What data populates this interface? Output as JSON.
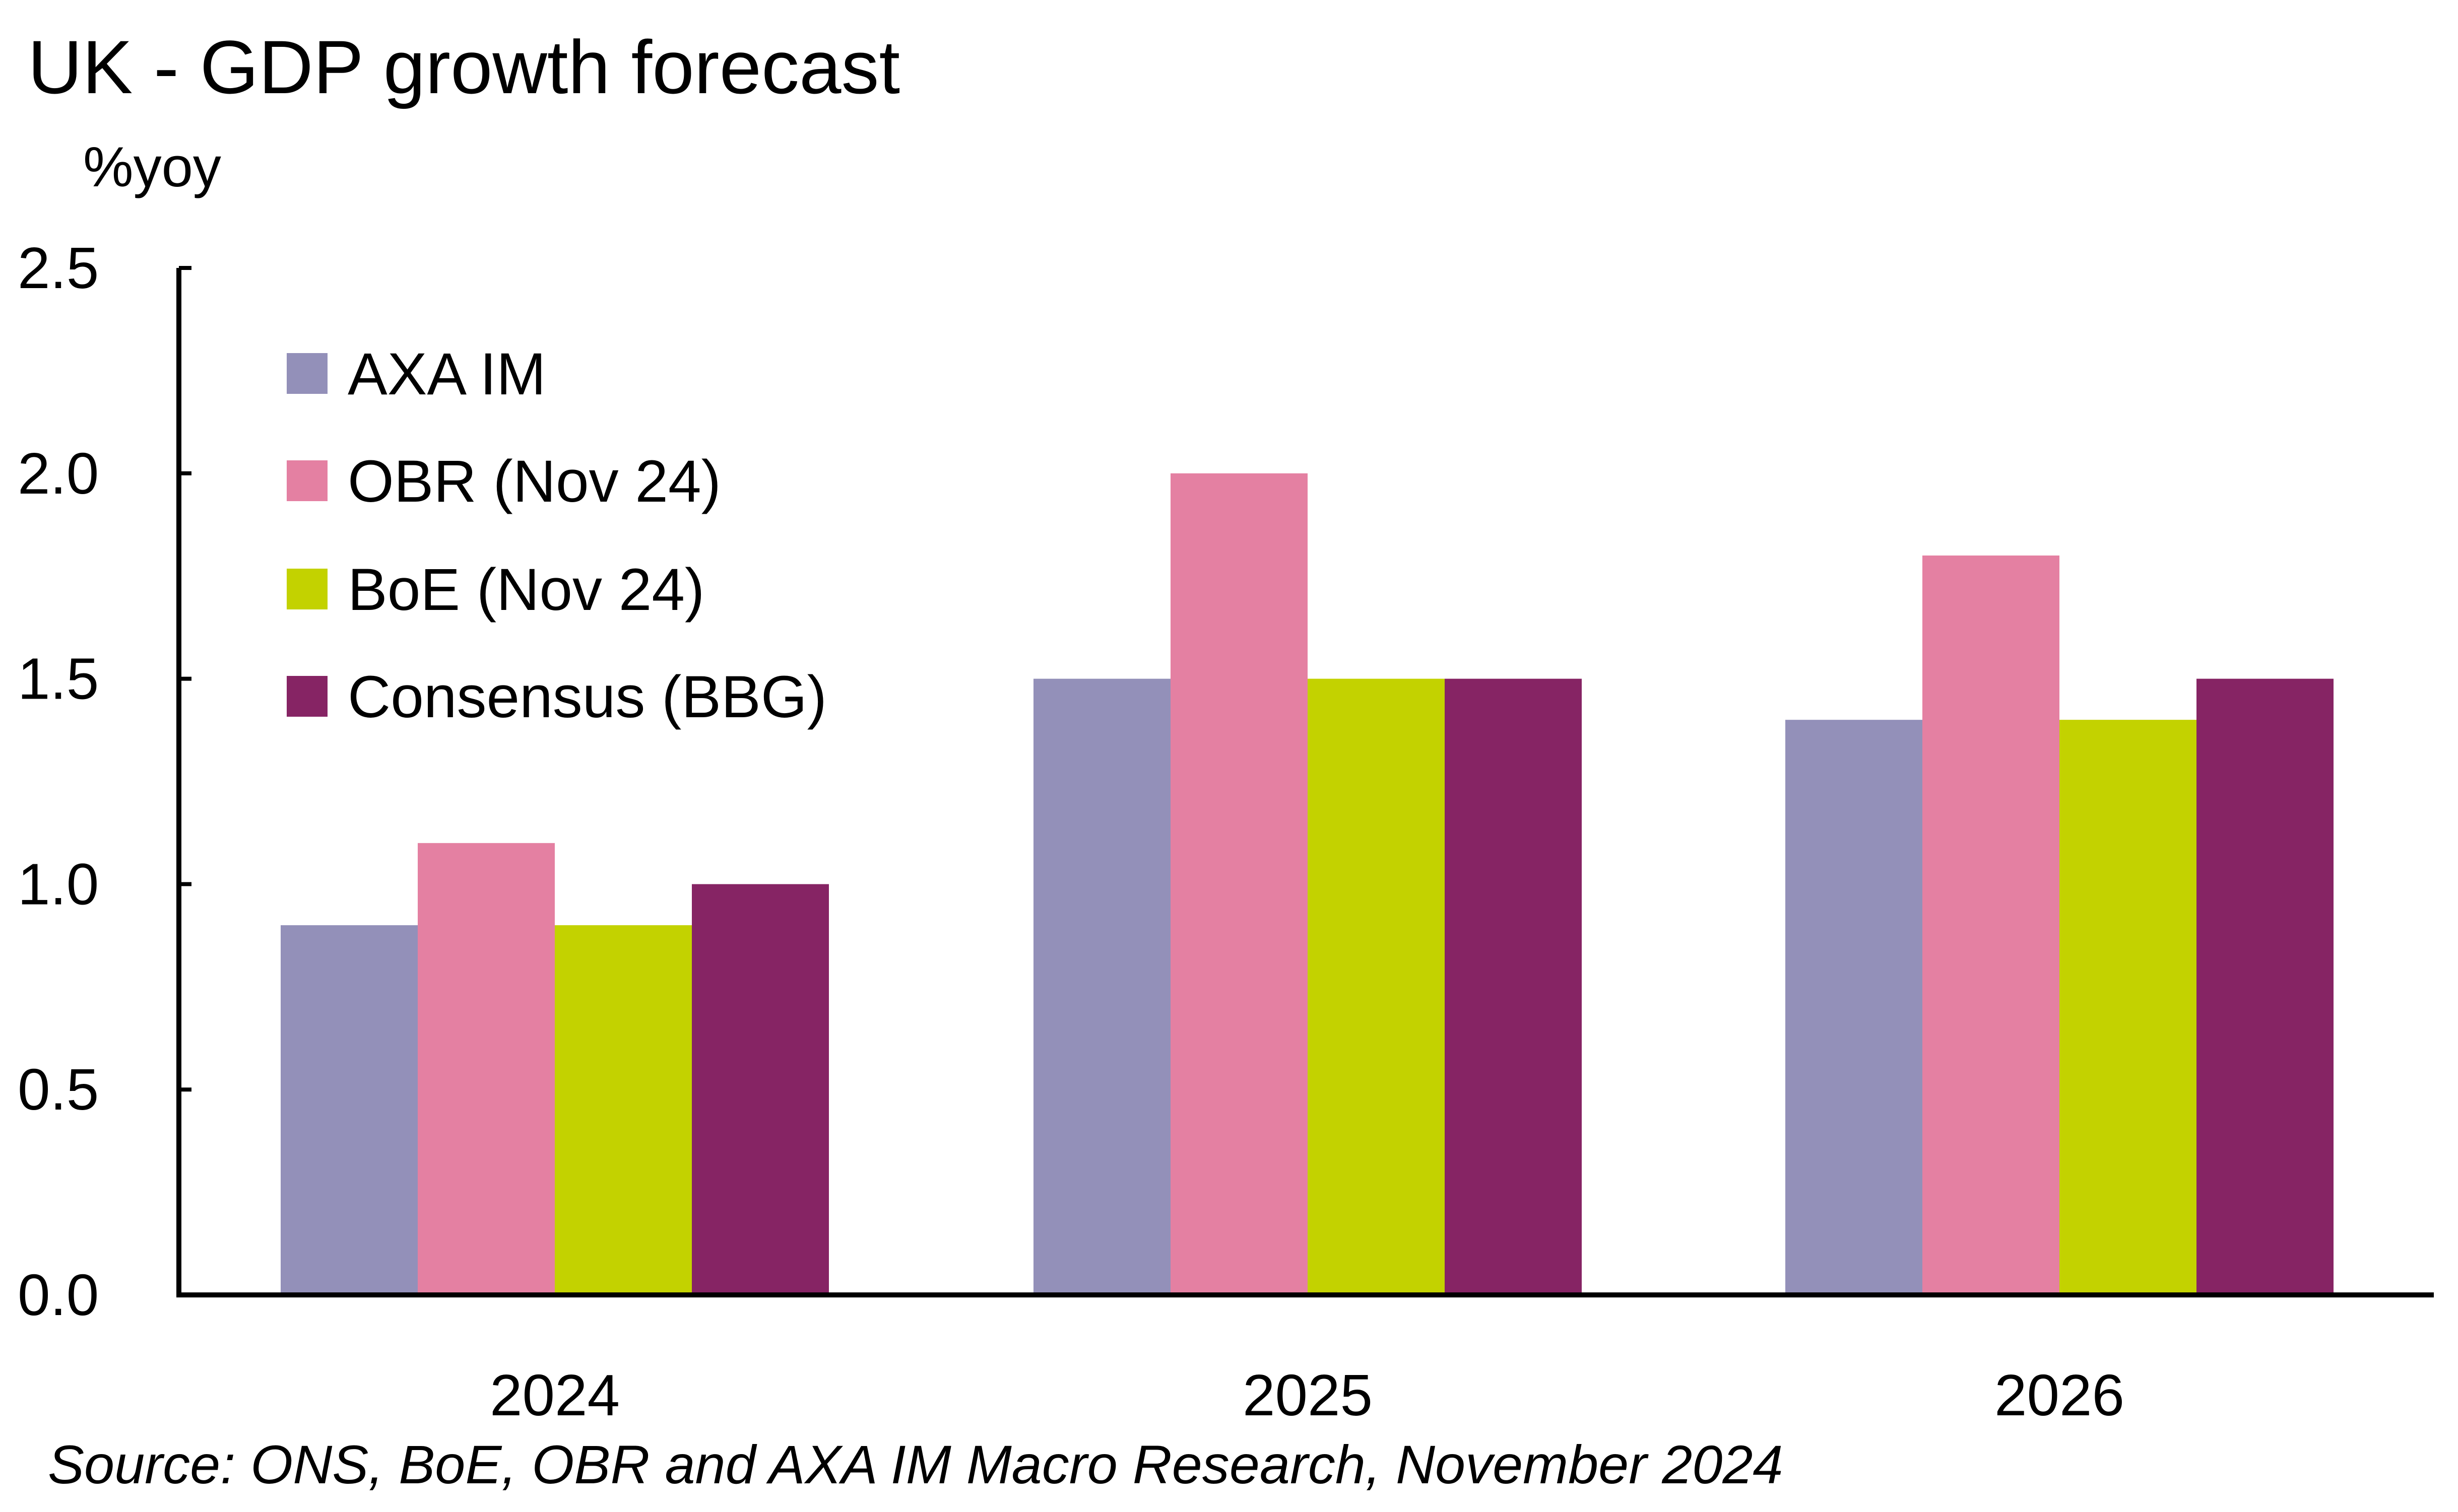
{
  "chart_data": {
    "type": "bar",
    "title": "UK - GDP growth forecast",
    "ylabel": "%yoy",
    "xlabel": "",
    "categories": [
      "2024",
      "2025",
      "2026"
    ],
    "series": [
      {
        "name": "AXA IM",
        "color": "#9390B9",
        "values": [
          0.9,
          1.5,
          1.4
        ]
      },
      {
        "name": "OBR (Nov 24)",
        "color": "#E480A2",
        "values": [
          1.1,
          2.0,
          1.8
        ]
      },
      {
        "name": "BoE (Nov 24)",
        "color": "#C3D200",
        "values": [
          0.9,
          1.5,
          1.4
        ]
      },
      {
        "name": "Consensus (BBG)",
        "color": "#862464",
        "values": [
          1.0,
          1.5,
          1.5
        ]
      }
    ],
    "ylim": [
      0,
      2.5
    ],
    "yticks": [
      "0.0",
      "0.5",
      "1.0",
      "1.5",
      "2.0",
      "2.5"
    ],
    "grid": false,
    "legend_placement": "top-left",
    "source": "Source: ONS, BoE, OBR and AXA IM Macro Research, November 2024"
  }
}
